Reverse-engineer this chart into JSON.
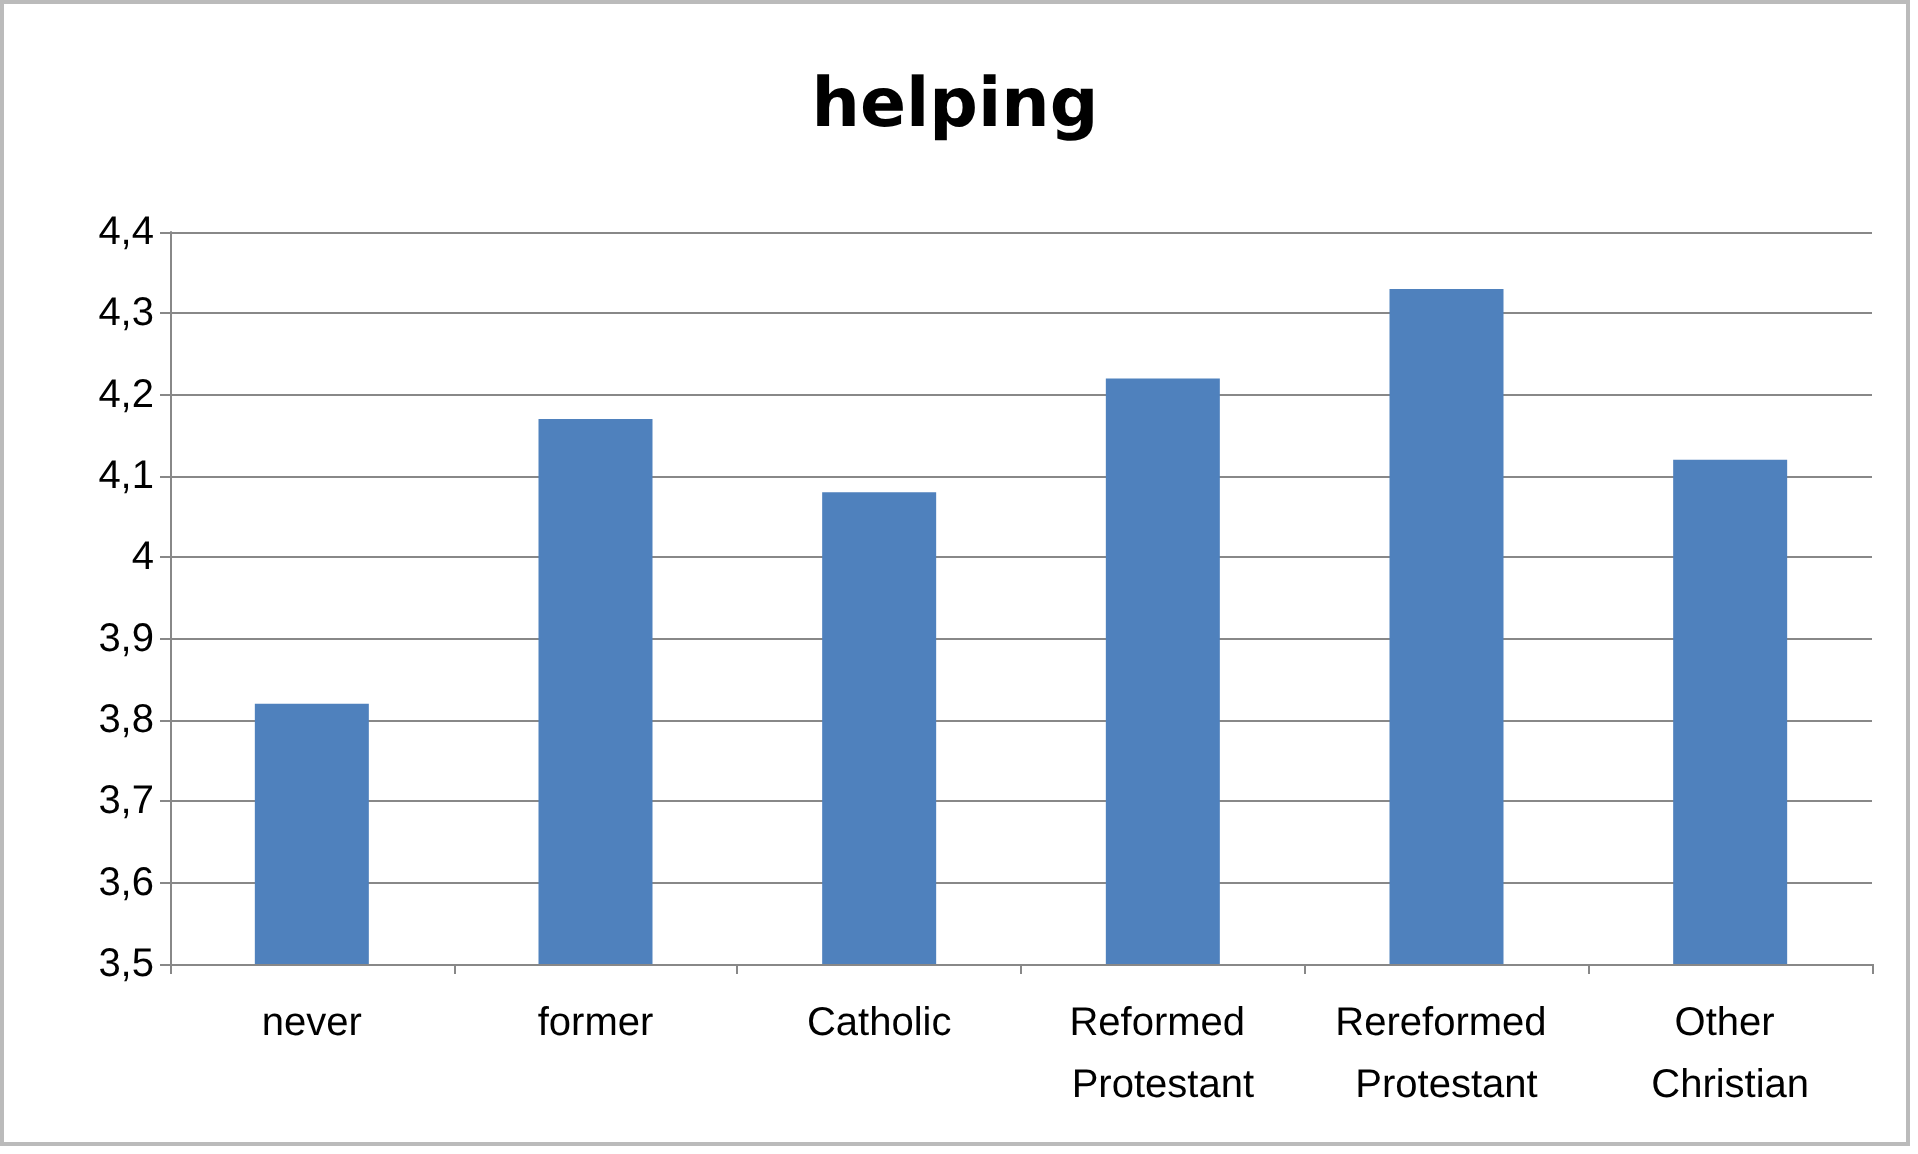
{
  "chart_data": {
    "type": "bar",
    "title": "helping",
    "categories": [
      "never",
      "former",
      "Catholic",
      "Reformed Protestant",
      "Rereformed Protestant",
      "Other Christian"
    ],
    "values": [
      3.82,
      4.17,
      4.08,
      4.22,
      4.33,
      4.12
    ],
    "color": "#4f81bd",
    "ylim": [
      3.5,
      4.4
    ],
    "yticks": [
      {
        "value": 3.5,
        "label": "3,5"
      },
      {
        "value": 3.6,
        "label": "3,6"
      },
      {
        "value": 3.7,
        "label": "3,7"
      },
      {
        "value": 3.8,
        "label": "3,8"
      },
      {
        "value": 3.9,
        "label": "3,9"
      },
      4,
      {
        "value": 4.1,
        "label": "4,1"
      },
      {
        "value": 4.2,
        "label": "4,2"
      },
      {
        "value": 4.3,
        "label": "4,3"
      },
      {
        "value": 4.4,
        "label": "4,4"
      }
    ],
    "grid": "y"
  }
}
